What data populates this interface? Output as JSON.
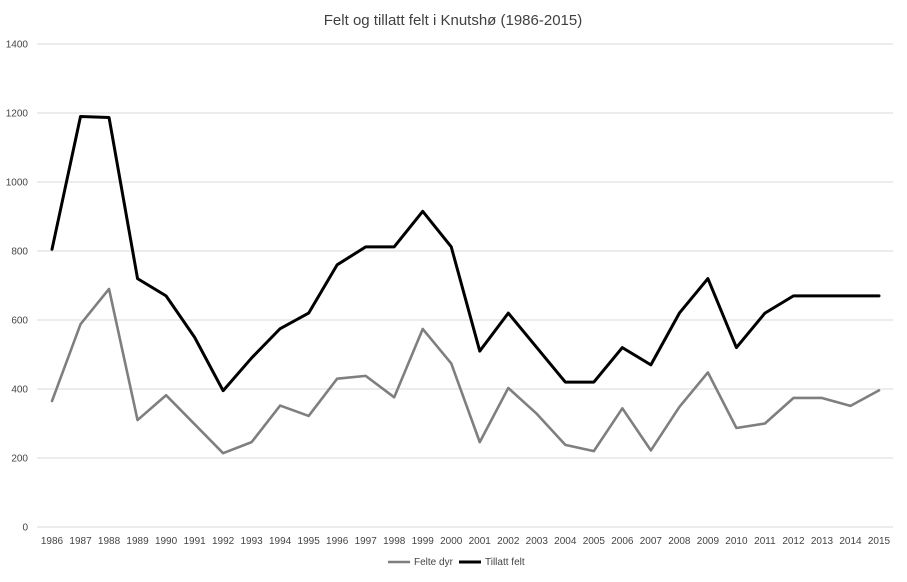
{
  "chart_data": {
    "type": "line",
    "title": "Felt og tillatt  felt i Knutshø (1986-2015)",
    "xlabel": "",
    "ylabel": "",
    "ylim": [
      0,
      1400
    ],
    "yticks": [
      0,
      200,
      400,
      600,
      800,
      1000,
      1200,
      1400
    ],
    "grid": true,
    "legend_position": "bottom",
    "categories": [
      "1986",
      "1987",
      "1988",
      "1989",
      "1990",
      "1991",
      "1992",
      "1993",
      "1994",
      "1995",
      "1996",
      "1997",
      "1998",
      "1999",
      "2000",
      "2001",
      "2002",
      "2003",
      "2004",
      "2005",
      "2006",
      "2007",
      "2008",
      "2009",
      "2010",
      "2011",
      "2012",
      "2013",
      "2014",
      "2015"
    ],
    "series": [
      {
        "name": "Felte dyr",
        "color": "#7f7f7f",
        "values": [
          365,
          588,
          690,
          310,
          382,
          298,
          214,
          246,
          352,
          322,
          430,
          438,
          376,
          574,
          474,
          246,
          403,
          328,
          238,
          220,
          344,
          222,
          348,
          448,
          287,
          300,
          374,
          374,
          351,
          396
        ]
      },
      {
        "name": "Tillatt felt",
        "color": "#000000",
        "values": [
          805,
          1190,
          1187,
          720,
          670,
          550,
          395,
          490,
          575,
          620,
          760,
          812,
          812,
          915,
          812,
          510,
          620,
          520,
          420,
          420,
          520,
          470,
          620,
          720,
          520,
          620,
          670,
          670,
          670,
          670
        ]
      }
    ]
  }
}
